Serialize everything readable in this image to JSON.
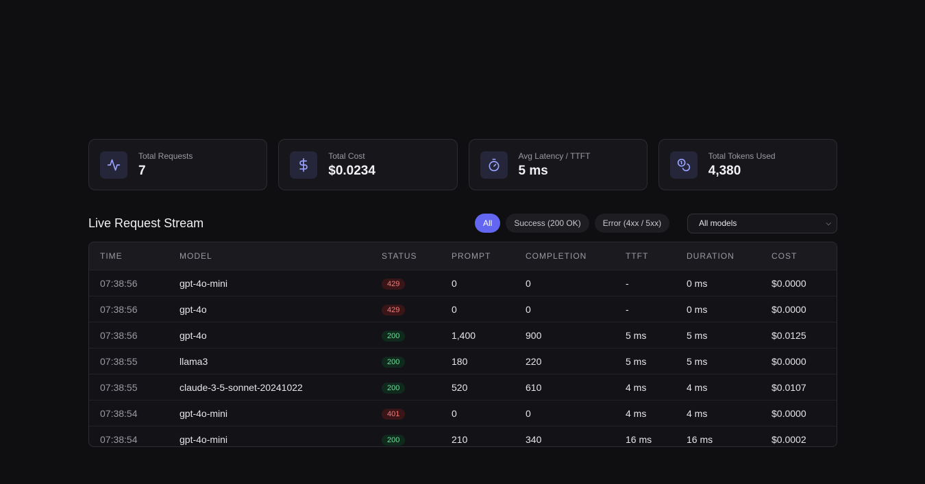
{
  "stats": [
    {
      "label": "Total Requests",
      "value": "7",
      "icon": "activity-icon"
    },
    {
      "label": "Total Cost",
      "value": "$0.0234",
      "icon": "dollar-icon"
    },
    {
      "label": "Avg Latency / TTFT",
      "value": "5 ms",
      "icon": "stopwatch-icon"
    },
    {
      "label": "Total Tokens Used",
      "value": "4,380",
      "icon": "coins-icon"
    }
  ],
  "stream": {
    "title": "Live Request Stream",
    "filters": [
      "All",
      "Success (200 OK)",
      "Error (4xx / 5xx)"
    ],
    "active_filter": "All",
    "model_select": "All models"
  },
  "table": {
    "headers": [
      "TIME",
      "MODEL",
      "STATUS",
      "PROMPT",
      "COMPLETION",
      "TTFT",
      "DURATION",
      "COST"
    ],
    "rows": [
      {
        "time": "07:38:56",
        "model": "gpt-4o-mini",
        "status": "429",
        "prompt": "0",
        "completion": "0",
        "ttft": "-",
        "duration": "0 ms",
        "cost": "$0.0000"
      },
      {
        "time": "07:38:56",
        "model": "gpt-4o",
        "status": "429",
        "prompt": "0",
        "completion": "0",
        "ttft": "-",
        "duration": "0 ms",
        "cost": "$0.0000"
      },
      {
        "time": "07:38:56",
        "model": "gpt-4o",
        "status": "200",
        "prompt": "1,400",
        "completion": "900",
        "ttft": "5 ms",
        "duration": "5 ms",
        "cost": "$0.0125"
      },
      {
        "time": "07:38:55",
        "model": "llama3",
        "status": "200",
        "prompt": "180",
        "completion": "220",
        "ttft": "5 ms",
        "duration": "5 ms",
        "cost": "$0.0000"
      },
      {
        "time": "07:38:55",
        "model": "claude-3-5-sonnet-20241022",
        "status": "200",
        "prompt": "520",
        "completion": "610",
        "ttft": "4 ms",
        "duration": "4 ms",
        "cost": "$0.0107"
      },
      {
        "time": "07:38:54",
        "model": "gpt-4o-mini",
        "status": "401",
        "prompt": "0",
        "completion": "0",
        "ttft": "4 ms",
        "duration": "4 ms",
        "cost": "$0.0000"
      },
      {
        "time": "07:38:54",
        "model": "gpt-4o-mini",
        "status": "200",
        "prompt": "210",
        "completion": "340",
        "ttft": "16 ms",
        "duration": "16 ms",
        "cost": "$0.0002"
      }
    ]
  },
  "colors": {
    "accent": "#6366f1",
    "success": "#6fdc9a",
    "error": "#f07b7b"
  }
}
